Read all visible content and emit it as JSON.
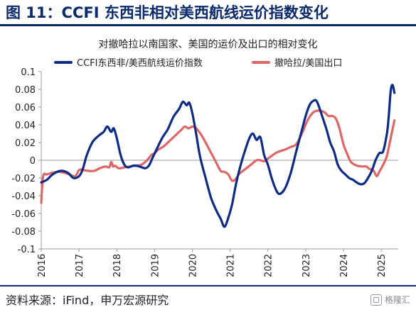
{
  "header": {
    "title": "图 11：CCFI 东西非相对美西航线运价指数变化"
  },
  "footer": {
    "source": "资料来源：iFind，申万宏源研究",
    "watermark": "格隆汇"
  },
  "colors": {
    "brand": "#0b2a6e",
    "series_ccfi": "#0d2c8a",
    "series_export": "#e06666"
  },
  "chart_data": {
    "type": "line",
    "title": "对撤哈拉以南国家、美国的运价及出口的相对变化",
    "xlabel": "",
    "ylabel": "",
    "ylim": [
      -0.1,
      0.1
    ],
    "yticks": [
      0.1,
      0.08,
      0.06,
      0.04,
      0.02,
      0,
      -0.02,
      -0.04,
      -0.06,
      -0.08,
      -0.1
    ],
    "ytick_labels": [
      "0.1",
      "0.08",
      "0.06",
      "0.04",
      "0.02",
      "0",
      "-0.02",
      "-0.04",
      "-0.06",
      "-0.08",
      "-0.1"
    ],
    "xlim": [
      2016.0,
      2025.45
    ],
    "xticks": [
      2016,
      2017,
      2018,
      2019,
      2020,
      2021,
      2022,
      2023,
      2024,
      2025
    ],
    "xtick_labels": [
      "2016",
      "2017",
      "2018",
      "2019",
      "2020",
      "2021",
      "2022",
      "2023",
      "2024",
      "2025"
    ],
    "grid": false,
    "legend": "top",
    "series": [
      {
        "name": "CCFI东西非/美西航线运价指数",
        "color": "#0d2c8a",
        "x": [
          2016.0,
          2016.15,
          2016.3,
          2016.5,
          2016.7,
          2016.85,
          2017.0,
          2017.1,
          2017.2,
          2017.35,
          2017.5,
          2017.65,
          2017.75,
          2017.85,
          2017.92,
          2018.0,
          2018.1,
          2018.2,
          2018.3,
          2018.45,
          2018.6,
          2018.75,
          2018.85,
          2018.95,
          2019.05,
          2019.2,
          2019.35,
          2019.5,
          2019.65,
          2019.75,
          2019.85,
          2019.92,
          2020.0,
          2020.1,
          2020.2,
          2020.35,
          2020.5,
          2020.65,
          2020.75,
          2020.85,
          2020.95,
          2021.05,
          2021.15,
          2021.25,
          2021.35,
          2021.5,
          2021.6,
          2021.7,
          2021.8,
          2021.9,
          2022.0,
          2022.1,
          2022.2,
          2022.3,
          2022.45,
          2022.6,
          2022.75,
          2022.9,
          2023.0,
          2023.1,
          2023.2,
          2023.3,
          2023.45,
          2023.55,
          2023.65,
          2023.75,
          2023.85,
          2023.95,
          2024.05,
          2024.15,
          2024.25,
          2024.35,
          2024.45,
          2024.55,
          2024.65,
          2024.75,
          2024.85,
          2024.95,
          2025.05,
          2025.15,
          2025.2,
          2025.25,
          2025.3,
          2025.35
        ],
        "values": [
          -0.025,
          -0.022,
          -0.016,
          -0.012,
          -0.014,
          -0.02,
          -0.018,
          -0.01,
          0.005,
          0.02,
          0.027,
          0.032,
          0.038,
          0.032,
          0.036,
          0.025,
          0.006,
          -0.005,
          -0.008,
          -0.006,
          -0.007,
          -0.009,
          -0.006,
          0.003,
          0.012,
          0.025,
          0.035,
          0.049,
          0.058,
          0.066,
          0.062,
          0.065,
          0.053,
          0.03,
          0.005,
          -0.02,
          -0.043,
          -0.058,
          -0.066,
          -0.075,
          -0.065,
          -0.05,
          -0.028,
          -0.01,
          0.005,
          0.024,
          0.03,
          0.023,
          0.026,
          0.006,
          -0.005,
          -0.02,
          -0.032,
          -0.038,
          -0.032,
          -0.015,
          0.01,
          0.034,
          0.05,
          0.062,
          0.067,
          0.066,
          0.048,
          0.035,
          0.02,
          0.01,
          -0.005,
          -0.012,
          -0.016,
          -0.02,
          -0.022,
          -0.025,
          -0.027,
          -0.026,
          -0.02,
          -0.012,
          0.0,
          0.008,
          0.01,
          0.03,
          0.05,
          0.078,
          0.085,
          0.076
        ]
      },
      {
        "name": "撤哈拉/美国出口",
        "color": "#e06666",
        "x": [
          2016.0,
          2016.05,
          2016.15,
          2016.3,
          2016.45,
          2016.6,
          2016.75,
          2016.9,
          2017.0,
          2017.1,
          2017.25,
          2017.4,
          2017.55,
          2017.7,
          2017.8,
          2017.85,
          2017.9,
          2017.95,
          2018.05,
          2018.2,
          2018.35,
          2018.5,
          2018.65,
          2018.8,
          2018.92,
          2019.0,
          2019.1,
          2019.25,
          2019.4,
          2019.55,
          2019.7,
          2019.8,
          2019.9,
          2020.0,
          2020.1,
          2020.2,
          2020.3,
          2020.45,
          2020.6,
          2020.75,
          2020.85,
          2020.95,
          2021.05,
          2021.15,
          2021.25,
          2021.4,
          2021.55,
          2021.7,
          2021.8,
          2021.9,
          2022.0,
          2022.1,
          2022.2,
          2022.3,
          2022.45,
          2022.6,
          2022.75,
          2022.9,
          2023.05,
          2023.2,
          2023.35,
          2023.5,
          2023.6,
          2023.7,
          2023.8,
          2023.9,
          2024.0,
          2024.1,
          2024.2,
          2024.35,
          2024.5,
          2024.6,
          2024.7,
          2024.8,
          2024.88,
          2024.95,
          2025.05,
          2025.15,
          2025.25,
          2025.35
        ],
        "values": [
          -0.048,
          -0.018,
          -0.016,
          -0.014,
          -0.013,
          -0.014,
          -0.016,
          -0.018,
          -0.011,
          -0.011,
          -0.012,
          -0.012,
          -0.009,
          -0.007,
          -0.008,
          -0.002,
          -0.007,
          -0.006,
          -0.009,
          -0.008,
          -0.007,
          -0.006,
          -0.005,
          0.0,
          0.006,
          0.008,
          0.012,
          0.016,
          0.022,
          0.028,
          0.034,
          0.038,
          0.036,
          0.038,
          0.036,
          0.031,
          0.024,
          0.012,
          0.0,
          -0.012,
          -0.013,
          -0.016,
          -0.023,
          -0.021,
          -0.015,
          -0.01,
          -0.005,
          0.0,
          0.0,
          -0.001,
          0.002,
          0.005,
          0.008,
          0.01,
          0.012,
          0.015,
          0.018,
          0.03,
          0.045,
          0.054,
          0.056,
          0.054,
          0.05,
          0.05,
          0.047,
          0.035,
          0.018,
          0.007,
          -0.002,
          -0.006,
          -0.007,
          -0.007,
          -0.01,
          -0.012,
          -0.018,
          -0.013,
          -0.005,
          0.005,
          0.025,
          0.045
        ]
      }
    ]
  }
}
